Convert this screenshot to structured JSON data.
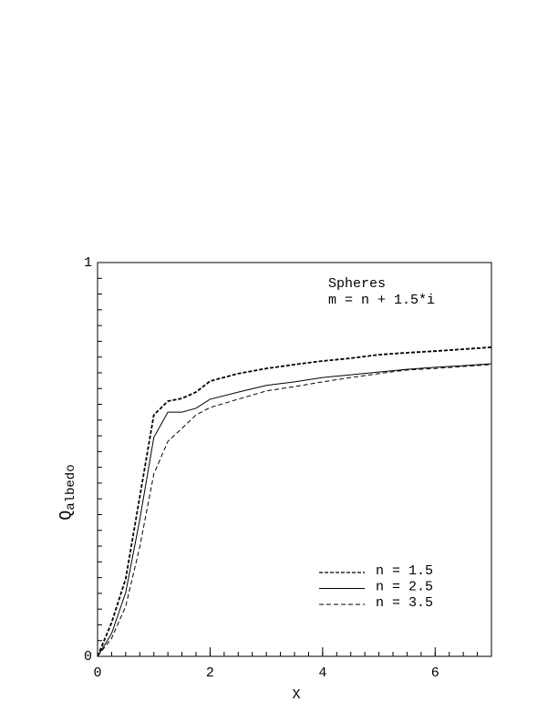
{
  "chart_data": {
    "type": "line",
    "x": [
      0,
      0.25,
      0.5,
      0.75,
      1,
      1.25,
      1.5,
      1.75,
      2,
      2.5,
      3,
      3.5,
      4,
      4.5,
      5,
      5.5,
      6,
      6.5,
      7
    ],
    "series": [
      {
        "name": "n  =  1.5",
        "color": "#000000",
        "dash": "4,2",
        "width": 1.8,
        "values": [
          0,
          0.086,
          0.197,
          0.405,
          0.613,
          0.648,
          0.655,
          0.671,
          0.699,
          0.718,
          0.731,
          0.741,
          0.75,
          0.757,
          0.766,
          0.771,
          0.775,
          0.78,
          0.785
        ]
      },
      {
        "name": "n  =  2.5",
        "color": "#000000",
        "dash": "none",
        "width": 1,
        "values": [
          0,
          0.058,
          0.162,
          0.347,
          0.556,
          0.62,
          0.62,
          0.63,
          0.653,
          0.671,
          0.688,
          0.697,
          0.708,
          0.715,
          0.722,
          0.729,
          0.734,
          0.738,
          0.743
        ]
      },
      {
        "name": "n  =  3.5",
        "color": "#000000",
        "dash": "5,3",
        "width": 1,
        "values": [
          0,
          0.046,
          0.127,
          0.278,
          0.463,
          0.546,
          0.579,
          0.613,
          0.632,
          0.653,
          0.674,
          0.685,
          0.697,
          0.708,
          0.718,
          0.727,
          0.731,
          0.736,
          0.741
        ]
      }
    ],
    "xlabel": "X",
    "ylabel": {
      "text": "Q",
      "subscript": "albedo"
    },
    "annotations": [
      "Spheres",
      "m  =  n  +  1.5*i"
    ],
    "xlim": [
      0,
      7
    ],
    "xticks": [
      0,
      2,
      4,
      6
    ],
    "ylim": [
      0,
      1
    ],
    "yticks": [
      0,
      1
    ],
    "legend": "lower right"
  }
}
